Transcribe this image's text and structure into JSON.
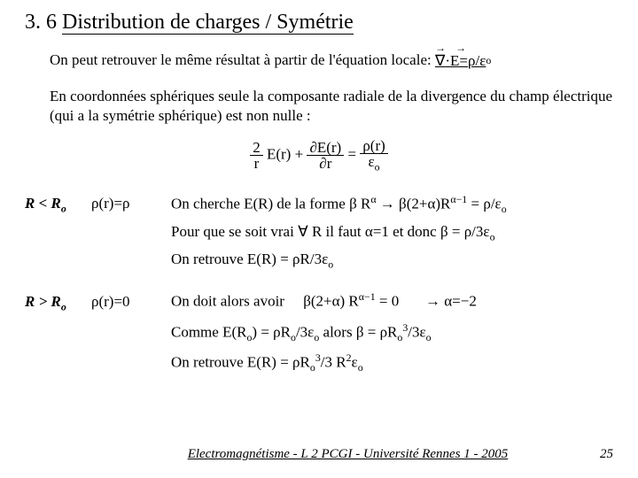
{
  "title_num": "3. 6",
  "title_text": "Distribution de charges / Symétrie",
  "para1_a": "On peut retrouver le même résultat à partir de l'équation locale: ",
  "eq_nabla": "∇",
  "eq_dot": "·",
  "eq_E": "E",
  "eq_eq": "=",
  "eq_rho": "ρ",
  "eq_slash": "/",
  "eq_eps": "ε",
  "eq_o": "o",
  "para2": "En coordonnées sphériques seule la composante radiale de la divergence du champ électrique (qui a la symétrie sphérique) est non nulle  :",
  "center_eq_2": "2",
  "center_eq_r": "r",
  "center_eq_Er": " E(r)  +",
  "center_eq_dEr": "∂E(r)",
  "center_eq_dr": "∂r",
  "center_eq_eqsign": "=",
  "center_eq_rhor": "ρ(r)",
  "center_eq_epso": "ε",
  "row1_col1_a": "R < R",
  "row1_col1_o": "o",
  "row1_col2": "ρ(r)=ρ",
  "row1_col3_a": "On cherche E(R) de la forme  β R",
  "row1_col3_alpha": "α",
  "row1_col3_arrow": "  →  ",
  "row1_col3_b": "β(2+α)R",
  "row1_col3_am1": "α−1",
  "row1_col3_c": "  = ρ/ε",
  "row2": "Pour que se soit vrai ∀ R  il faut α=1  et donc  β = ρ/3ε",
  "row3": "On retrouve E(R) = ρR/3ε",
  "row4_col1_a": "R > R",
  "row4_col2": "ρ(r)=0",
  "row4_col3_a": "On doit alors avoir",
  "row4_col3_b": "β(2+α) R",
  "row4_col3_am1": "α−1",
  "row4_col3_c": "  = 0",
  "row4_col3_arrow": "→  α=−2",
  "row5_a": "Comme E(R",
  "row5_b": ") = ρR",
  "row5_c": "/3ε",
  "row5_d": "  alors  β = ρR",
  "row5_cub": "3",
  "row5_e": "/3ε",
  "row6_a": "On retrouve E(R) = ρR",
  "row6_b": "/3 R",
  "row6_sq": "2",
  "row6_eps": "ε",
  "footer_text": "Electromagnétisme - L 2 PCGI - Université Rennes 1 - 2005",
  "footer_page": "25"
}
